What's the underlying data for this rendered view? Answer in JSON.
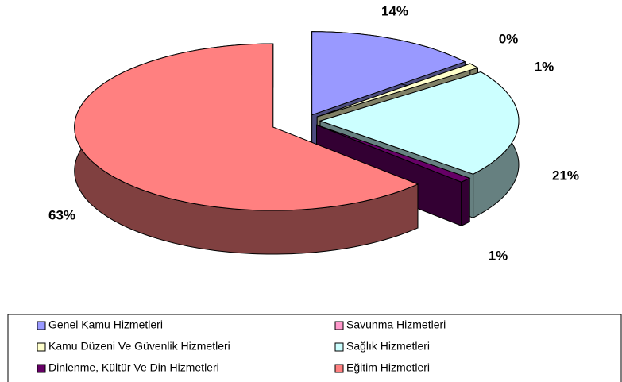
{
  "chart_data": {
    "type": "pie3d",
    "categories": [
      "Genel Kamu Hizmetleri",
      "Savunma Hizmetleri",
      "Kamu Düzeni Ve Güvenlik Hizmetleri",
      "Sağlık Hizmetleri",
      "Dinlenme, Kültür Ve Din Hizmetleri",
      "Eğitim Hizmetleri"
    ],
    "values": [
      14,
      0,
      1,
      21,
      1,
      63
    ],
    "value_labels": [
      "14%",
      "0%",
      "1%",
      "21%",
      "1%",
      "63%"
    ],
    "colors": [
      "#9999FF",
      "#FF99CC",
      "#FFFFCC",
      "#CCFFFF",
      "#660066",
      "#FF8080"
    ],
    "legend": "bottom"
  }
}
